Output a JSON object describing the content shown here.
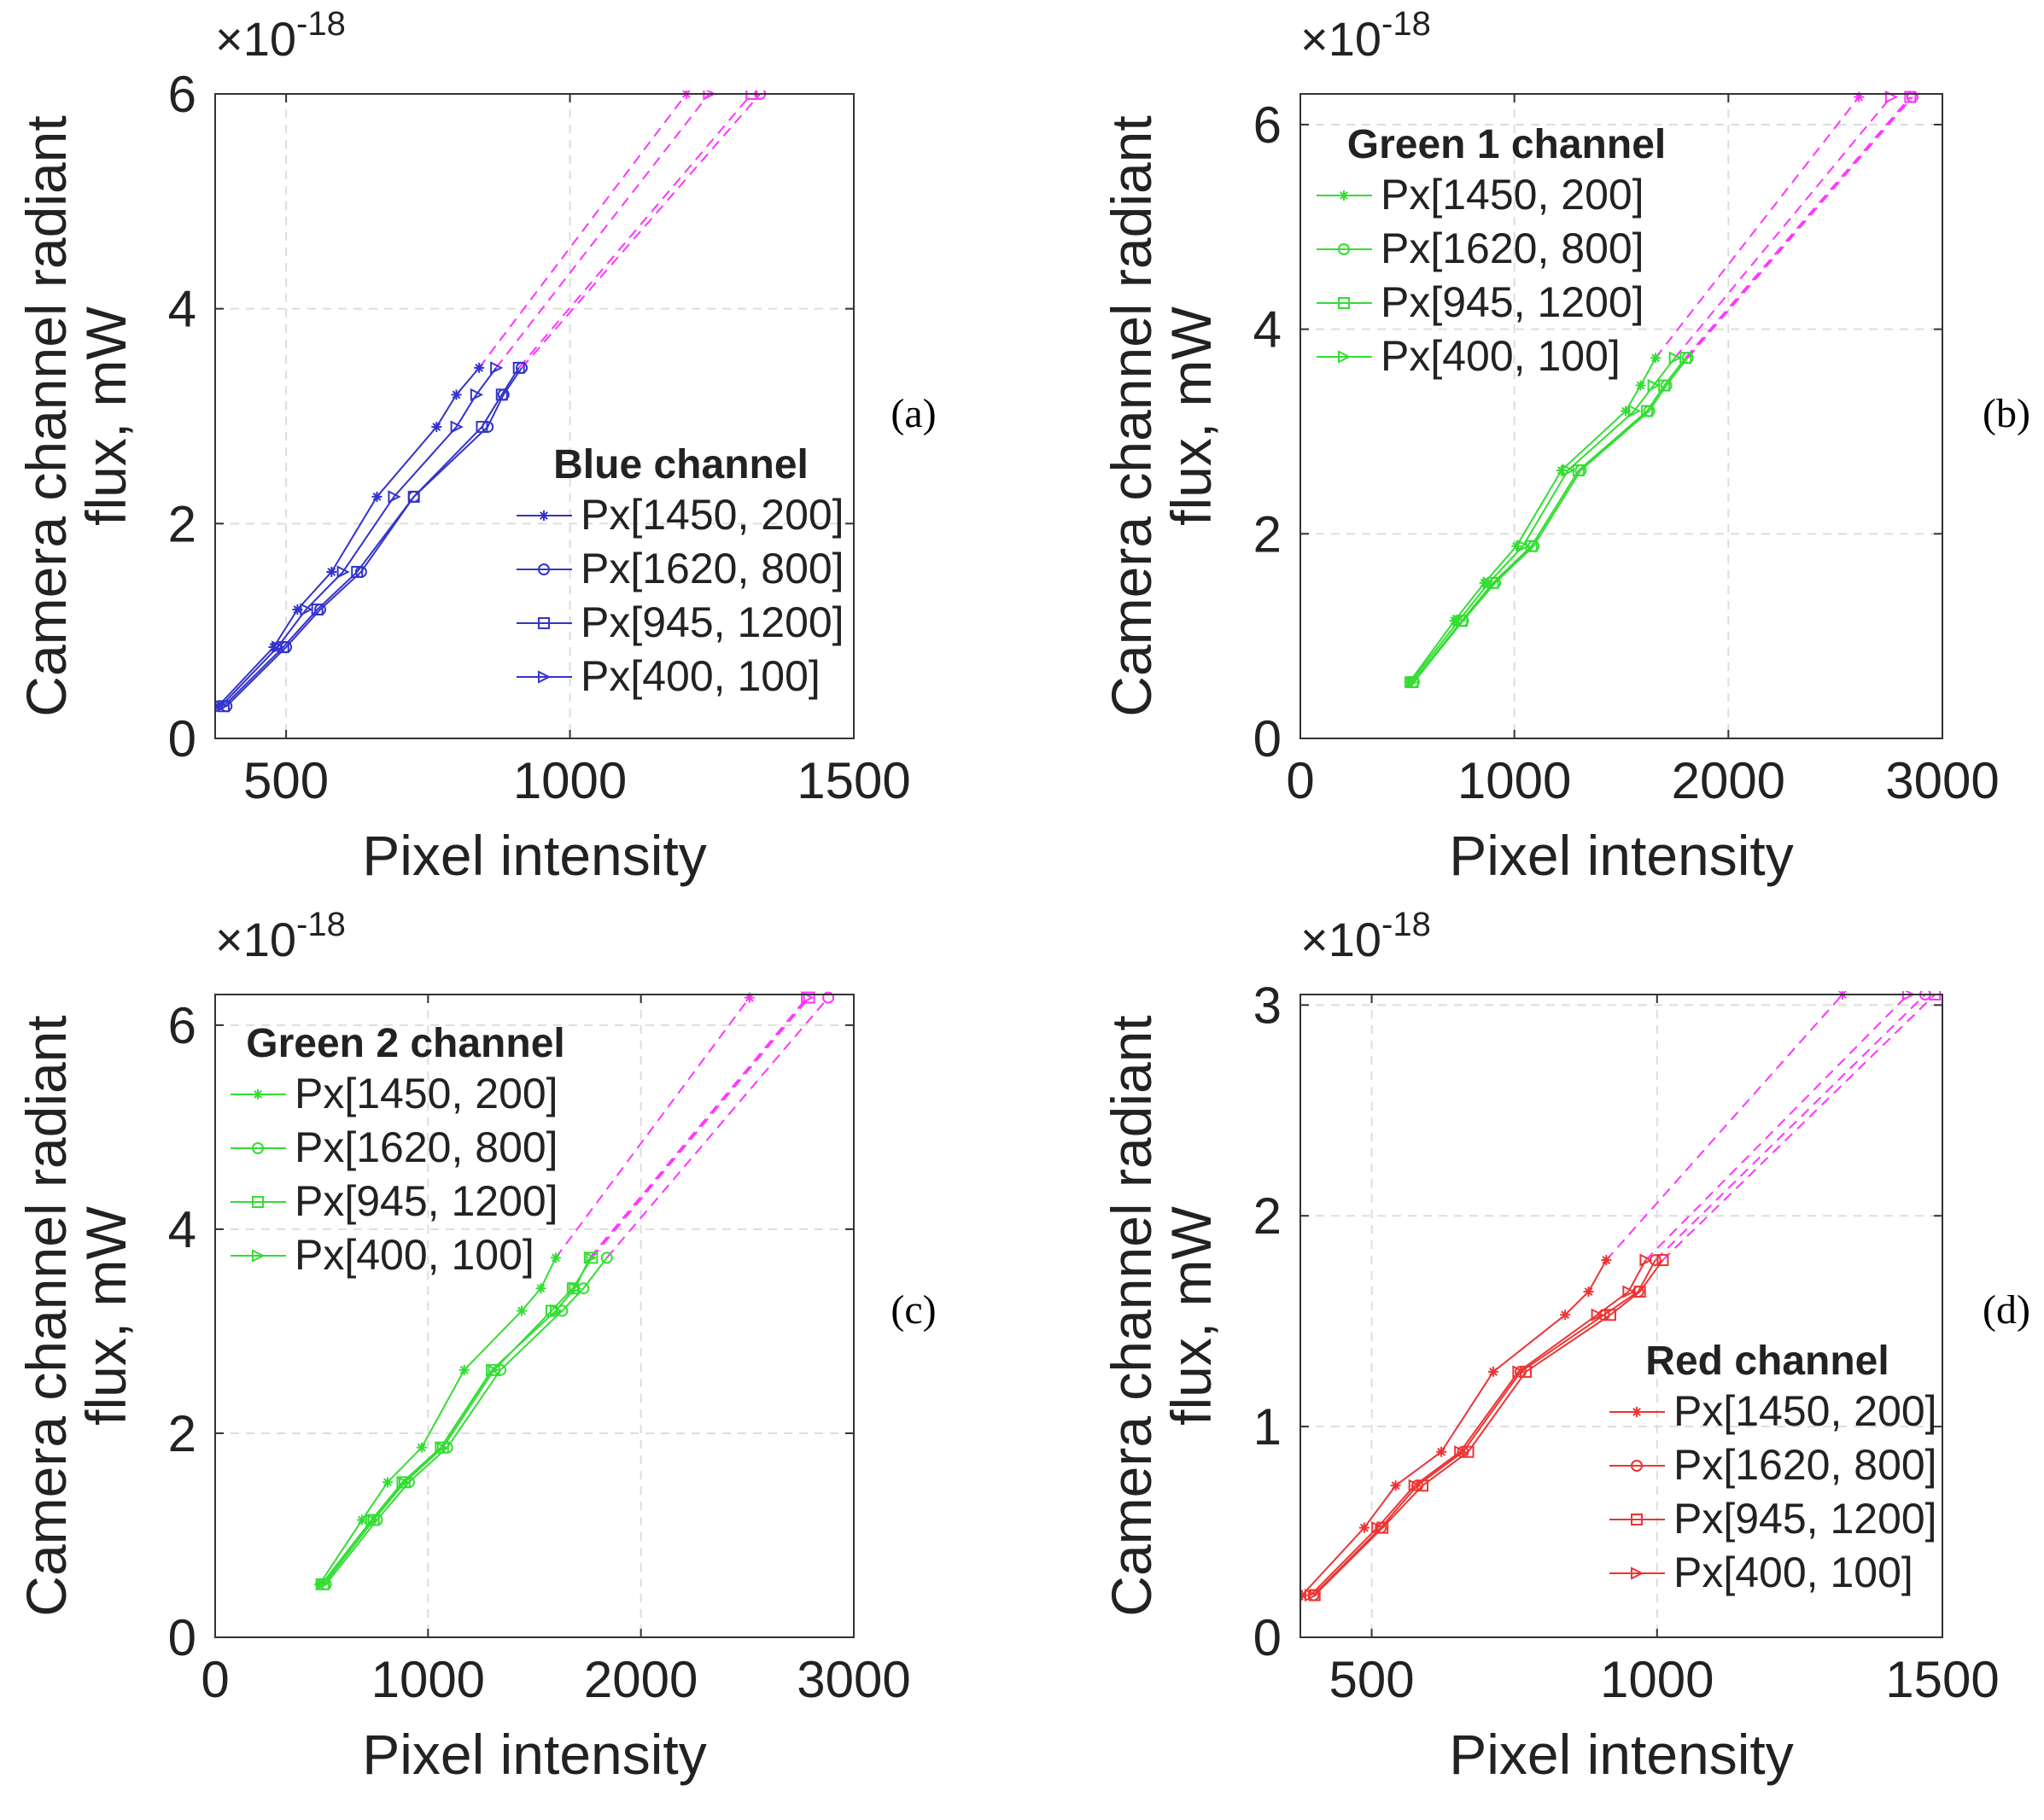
{
  "figure": {
    "y_axis_label_line1": "Camera channel radiant",
    "y_axis_label_line2": "flux, mW",
    "x_axis_label": "Pixel intensity",
    "exponent_times": "×10",
    "exponent_power": "-18",
    "extrapolation_color": "#ff33ff",
    "gridline_color": "#dddddd"
  },
  "chart_data": [
    {
      "type": "line",
      "panel_label": "(a)",
      "legend_title": "Blue channel",
      "legend_position": "lower-right",
      "color": "#3333cc",
      "xlim": [
        375,
        1500
      ],
      "ylim": [
        0,
        6
      ],
      "xticks": [
        500,
        1000,
        1500
      ],
      "yticks": [
        0,
        2,
        4,
        6
      ],
      "xlabel": "Pixel intensity",
      "ylabel": "Camera channel radiant flux, mW",
      "y_scale_exponent": -18,
      "grid": true,
      "series": [
        {
          "name": "Px[1450, 200]",
          "marker": "star",
          "x": [
            380,
            478,
            520,
            580,
            660,
            765,
            800,
            840
          ],
          "y": [
            0.3,
            0.85,
            1.2,
            1.55,
            2.25,
            2.9,
            3.2,
            3.45
          ],
          "extrapolation": [
            [
              840,
              3.45
            ],
            [
              1205,
              6.0
            ]
          ]
        },
        {
          "name": "Px[1620, 800]",
          "marker": "circle",
          "x": [
            395,
            500,
            560,
            632,
            725,
            855,
            883,
            915
          ],
          "y": [
            0.3,
            0.85,
            1.2,
            1.55,
            2.25,
            2.9,
            3.2,
            3.45
          ],
          "extrapolation": [
            [
              915,
              3.45
            ],
            [
              1335,
              6.0
            ]
          ]
        },
        {
          "name": "Px[945, 1200]",
          "marker": "square",
          "x": [
            390,
            495,
            555,
            625,
            725,
            845,
            880,
            910
          ],
          "y": [
            0.3,
            0.85,
            1.2,
            1.55,
            2.25,
            2.9,
            3.2,
            3.45
          ],
          "extrapolation": [
            [
              910,
              3.45
            ],
            [
              1320,
              6.0
            ]
          ]
        },
        {
          "name": "Px[400, 100]",
          "marker": "triangle-right",
          "x": [
            385,
            485,
            535,
            600,
            690,
            800,
            835,
            870
          ],
          "y": [
            0.3,
            0.85,
            1.2,
            1.55,
            2.25,
            2.9,
            3.2,
            3.45
          ],
          "extrapolation": [
            [
              870,
              3.45
            ],
            [
              1245,
              6.0
            ]
          ]
        }
      ]
    },
    {
      "type": "line",
      "panel_label": "(b)",
      "legend_title": "Green 1 channel",
      "legend_position": "top-left",
      "color": "#33dd33",
      "xlim": [
        0,
        3000
      ],
      "ylim": [
        0,
        6.3
      ],
      "xticks": [
        0,
        1000,
        2000,
        3000
      ],
      "yticks": [
        0,
        2,
        4,
        6
      ],
      "xlabel": "Pixel intensity",
      "ylabel": "Camera channel radiant flux, mW",
      "y_scale_exponent": -18,
      "grid": true,
      "series": [
        {
          "name": "Px[1450, 200]",
          "marker": "star",
          "x": [
            510,
            720,
            860,
            1010,
            1220,
            1520,
            1590,
            1660
          ],
          "y": [
            0.55,
            1.15,
            1.52,
            1.88,
            2.62,
            3.2,
            3.45,
            3.72
          ],
          "extrapolation": [
            [
              1660,
              3.72
            ],
            [
              2610,
              6.27
            ]
          ]
        },
        {
          "name": "Px[1620, 800]",
          "marker": "circle",
          "x": [
            530,
            760,
            910,
            1090,
            1310,
            1630,
            1710,
            1810
          ],
          "y": [
            0.55,
            1.15,
            1.52,
            1.88,
            2.62,
            3.2,
            3.45,
            3.72
          ],
          "extrapolation": [
            [
              1810,
              3.72
            ],
            [
              2860,
              6.27
            ]
          ]
        },
        {
          "name": "Px[945, 1200]",
          "marker": "square",
          "x": [
            525,
            755,
            900,
            1080,
            1300,
            1620,
            1700,
            1800
          ],
          "y": [
            0.55,
            1.15,
            1.52,
            1.88,
            2.62,
            3.2,
            3.45,
            3.72
          ],
          "extrapolation": [
            [
              1800,
              3.72
            ],
            [
              2850,
              6.27
            ]
          ]
        },
        {
          "name": "Px[400, 100]",
          "marker": "triangle-right",
          "x": [
            515,
            740,
            880,
            1040,
            1250,
            1560,
            1650,
            1750
          ],
          "y": [
            0.55,
            1.15,
            1.52,
            1.88,
            2.62,
            3.2,
            3.45,
            3.72
          ],
          "extrapolation": [
            [
              1750,
              3.72
            ],
            [
              2760,
              6.27
            ]
          ]
        }
      ]
    },
    {
      "type": "line",
      "panel_label": "(c)",
      "legend_title": "Green 2 channel",
      "legend_position": "top-left",
      "color": "#33dd33",
      "xlim": [
        0,
        3000
      ],
      "ylim": [
        0,
        6.3
      ],
      "xticks": [
        0,
        1000,
        2000,
        3000
      ],
      "yticks": [
        0,
        2,
        4,
        6
      ],
      "xlabel": "Pixel intensity",
      "ylabel": "Camera channel radiant flux, mW",
      "y_scale_exponent": -18,
      "grid": true,
      "series": [
        {
          "name": "Px[1450, 200]",
          "marker": "star",
          "x": [
            490,
            690,
            810,
            970,
            1170,
            1440,
            1530,
            1600
          ],
          "y": [
            0.52,
            1.15,
            1.52,
            1.86,
            2.62,
            3.2,
            3.42,
            3.72
          ],
          "extrapolation": [
            [
              1600,
              3.72
            ],
            [
              2510,
              6.27
            ]
          ]
        },
        {
          "name": "Px[1620, 800]",
          "marker": "circle",
          "x": [
            520,
            760,
            910,
            1090,
            1340,
            1630,
            1730,
            1840
          ],
          "y": [
            0.52,
            1.15,
            1.52,
            1.86,
            2.62,
            3.2,
            3.42,
            3.72
          ],
          "extrapolation": [
            [
              1840,
              3.72
            ],
            [
              2880,
              6.27
            ]
          ]
        },
        {
          "name": "Px[945, 1200]",
          "marker": "square",
          "x": [
            510,
            745,
            890,
            1070,
            1310,
            1580,
            1680,
            1770
          ],
          "y": [
            0.52,
            1.15,
            1.52,
            1.86,
            2.62,
            3.2,
            3.42,
            3.72
          ],
          "extrapolation": [
            [
              1770,
              3.72
            ],
            [
              2790,
              6.27
            ]
          ]
        },
        {
          "name": "Px[400, 100]",
          "marker": "triangle-right",
          "x": [
            500,
            735,
            880,
            1060,
            1300,
            1600,
            1690,
            1760
          ],
          "y": [
            0.52,
            1.15,
            1.52,
            1.86,
            2.62,
            3.2,
            3.42,
            3.72
          ],
          "extrapolation": [
            [
              1760,
              3.72
            ],
            [
              2780,
              6.27
            ]
          ]
        }
      ]
    },
    {
      "type": "line",
      "panel_label": "(d)",
      "legend_title": "Red channel",
      "legend_position": "lower-right",
      "color": "#ee3333",
      "xlim": [
        375,
        1500
      ],
      "ylim": [
        0,
        3.05
      ],
      "xticks": [
        500,
        1000,
        1500
      ],
      "yticks": [
        0,
        1,
        2,
        3
      ],
      "xlabel": "Pixel intensity",
      "ylabel": "Camera channel radiant flux, mW",
      "y_scale_exponent": -18,
      "grid": true,
      "series": [
        {
          "name": "Px[1450, 200]",
          "marker": "star",
          "x": [
            378,
            487,
            542,
            622,
            713,
            839,
            880,
            911
          ],
          "y": [
            0.2,
            0.52,
            0.72,
            0.88,
            1.26,
            1.53,
            1.64,
            1.79
          ],
          "extrapolation": [
            [
              911,
              1.79
            ],
            [
              1325,
              3.05
            ]
          ]
        },
        {
          "name": "Px[1620, 800]",
          "marker": "circle",
          "x": [
            398,
            516,
            580,
            660,
            761,
            907,
            967,
            997
          ],
          "y": [
            0.2,
            0.52,
            0.72,
            0.88,
            1.26,
            1.53,
            1.64,
            1.79
          ],
          "extrapolation": [
            [
              997,
              1.79
            ],
            [
              1470,
              3.05
            ]
          ]
        },
        {
          "name": "Px[945, 1200]",
          "marker": "square",
          "x": [
            400,
            519,
            589,
            669,
            770,
            918,
            970,
            1010
          ],
          "y": [
            0.2,
            0.52,
            0.72,
            0.88,
            1.26,
            1.53,
            1.64,
            1.79
          ],
          "extrapolation": [
            [
              1010,
              1.79
            ],
            [
              1487,
              3.05
            ]
          ]
        },
        {
          "name": "Px[400, 100]",
          "marker": "triangle-right",
          "x": [
            393,
            510,
            575,
            655,
            757,
            895,
            950,
            980
          ],
          "y": [
            0.2,
            0.52,
            0.72,
            0.88,
            1.26,
            1.53,
            1.64,
            1.79
          ],
          "extrapolation": [
            [
              980,
              1.79
            ],
            [
              1440,
              3.05
            ]
          ]
        }
      ]
    }
  ]
}
